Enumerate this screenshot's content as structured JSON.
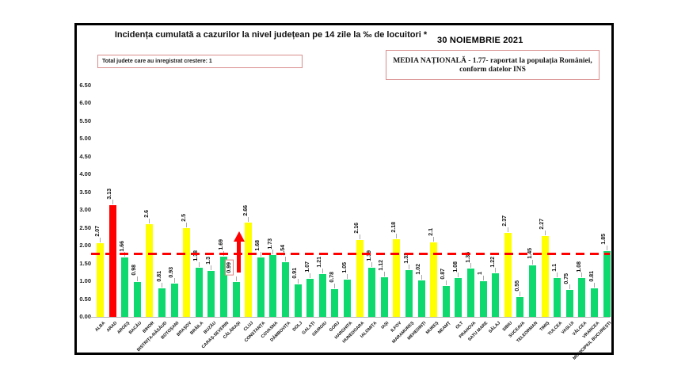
{
  "header": {
    "title": "Incidența cumulată a cazurilor la nivel județean pe 14 zile la ‰ de locuitori *",
    "date": "30 NOIEMBRIE 2021",
    "growth_note": "Total judete care au inregistrat crestere: 1",
    "national_average_line1": "MEDIA NAȚIONALĂ  - 1.77-  raportat la populația României,",
    "national_average_line2": "conform datelor INS"
  },
  "chart_data": {
    "type": "bar",
    "title": "Incidența cumulată a cazurilor la nivel județean pe 14 zile la ‰ de locuitori *",
    "categories": [
      "ALBA",
      "ARAD",
      "ARGEȘ",
      "BACĂU",
      "BIHOR",
      "BISTRIȚA-NĂSĂUD",
      "BOTOȘANI",
      "BRAȘOV",
      "BRĂILA",
      "BUZĂU",
      "CARAȘ-SEVERIN",
      "CĂLĂRAȘI",
      "CLUJ",
      "CONSTANȚA",
      "COVASNA",
      "DÂMBOVIȚA",
      "DOLJ",
      "GALAȚI",
      "GIURGIU",
      "GORJ",
      "HARGHITA",
      "HUNEDOARA",
      "IALOMIȚA",
      "IAȘI",
      "ILFOV",
      "MARAMUREȘ",
      "MEHEDINȚI",
      "MUREȘ",
      "NEAMȚ",
      "OLT",
      "PRAHOVA",
      "SATU MARE",
      "SĂLAJ",
      "SIBIU",
      "SUCEAVA",
      "TELEORMAN",
      "TIMIȘ",
      "TULCEA",
      "VASLUI",
      "VÂLCEA",
      "VRANCEA",
      "MUNICIPIUL BUCUREȘTI"
    ],
    "values": [
      2.07,
      3.13,
      1.66,
      0.98,
      2.6,
      0.81,
      0.93,
      2.5,
      1.38,
      1.3,
      1.69,
      0.99,
      2.66,
      1.68,
      1.73,
      1.54,
      0.91,
      1.07,
      1.21,
      0.78,
      1.05,
      2.16,
      1.39,
      1.12,
      2.18,
      1.32,
      1.02,
      2.1,
      0.87,
      1.08,
      1.35,
      1,
      1.22,
      2.37,
      0.55,
      1.45,
      2.27,
      1.1,
      0.75,
      1.08,
      0.81,
      1.85
    ],
    "value_labels": [
      "2.07",
      "3.13",
      "1.66",
      "0.98",
      "2.6",
      "0.81",
      "0.93",
      "2.5",
      "1.38",
      "1.3",
      "1.69",
      "0.99",
      "2.66",
      "1.68",
      "1.73",
      "1.54",
      "0.91",
      "1.07",
      "1.21",
      "0.78",
      "1.05",
      "2.16",
      "1.39",
      "1.12",
      "2.18",
      "1.32",
      "1.02",
      "2.1",
      "0.87",
      "1.08",
      "1.35",
      "1",
      "1.22",
      "2.37",
      "0.55",
      "1.45",
      "2.27",
      "1.1",
      "0.75",
      "1.08",
      "0.81",
      "1.85"
    ],
    "ylim": [
      0,
      6.5
    ],
    "ytick_step": 0.5,
    "national_average": 1.77,
    "grid": false,
    "legend": null,
    "color_rules": {
      "red_at_or_above": 3,
      "yellow_at_or_above": 2,
      "green_below": 2
    },
    "colors": {
      "green": "#0ed96e",
      "yellow": "#ffff00",
      "red": "#ff0000",
      "reference_line": "#ff0000",
      "leader": "#a8a8a8"
    },
    "highlight": {
      "category": "CĂLĂRAȘI",
      "value_label": "0.99",
      "boxed": true,
      "marker": "red-up-arrow"
    }
  }
}
